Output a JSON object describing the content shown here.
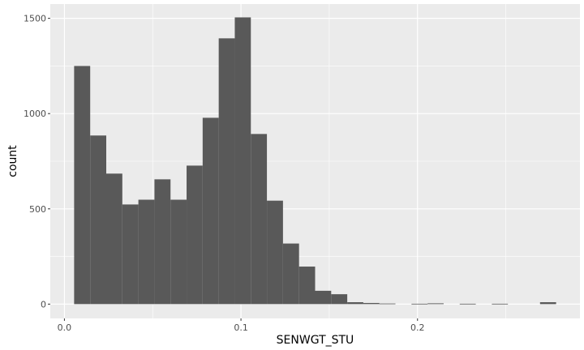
{
  "chart_data": {
    "type": "bar",
    "title": "",
    "xlabel": "SENWGT_STU",
    "ylabel": "count",
    "xlim": [
      -0.008,
      0.292
    ],
    "ylim": [
      -75,
      1575
    ],
    "x_ticks": [
      0.0,
      0.1,
      0.2
    ],
    "x_tick_labels": [
      "0.0",
      "0.1",
      "0.2"
    ],
    "y_ticks": [
      0,
      500,
      1000,
      1500
    ],
    "y_tick_labels": [
      "0",
      "500",
      "1000",
      "1500"
    ],
    "grid": true,
    "bin_width": 0.0091,
    "bins": [
      {
        "x0": 0.0055,
        "count": 1250
      },
      {
        "x0": 0.0146,
        "count": 885
      },
      {
        "x0": 0.0237,
        "count": 685
      },
      {
        "x0": 0.0328,
        "count": 523
      },
      {
        "x0": 0.0419,
        "count": 548
      },
      {
        "x0": 0.051,
        "count": 655
      },
      {
        "x0": 0.0601,
        "count": 548
      },
      {
        "x0": 0.0692,
        "count": 727
      },
      {
        "x0": 0.0783,
        "count": 978
      },
      {
        "x0": 0.0874,
        "count": 1395
      },
      {
        "x0": 0.0965,
        "count": 1505
      },
      {
        "x0": 0.1056,
        "count": 893
      },
      {
        "x0": 0.1147,
        "count": 543
      },
      {
        "x0": 0.1238,
        "count": 318
      },
      {
        "x0": 0.1329,
        "count": 197
      },
      {
        "x0": 0.142,
        "count": 70
      },
      {
        "x0": 0.1511,
        "count": 52
      },
      {
        "x0": 0.1602,
        "count": 10
      },
      {
        "x0": 0.1693,
        "count": 6
      },
      {
        "x0": 0.1784,
        "count": 3
      },
      {
        "x0": 0.1875,
        "count": 0
      },
      {
        "x0": 0.1966,
        "count": 2
      },
      {
        "x0": 0.2057,
        "count": 4
      },
      {
        "x0": 0.2148,
        "count": 0
      },
      {
        "x0": 0.2239,
        "count": 2
      },
      {
        "x0": 0.233,
        "count": 0
      },
      {
        "x0": 0.2421,
        "count": 2
      },
      {
        "x0": 0.2512,
        "count": 0
      },
      {
        "x0": 0.2603,
        "count": 0
      },
      {
        "x0": 0.2694,
        "count": 10
      }
    ],
    "colors": {
      "panel": "#ebebeb",
      "grid_major": "#ffffff",
      "bar": "#595959",
      "tick": "#333333"
    }
  }
}
